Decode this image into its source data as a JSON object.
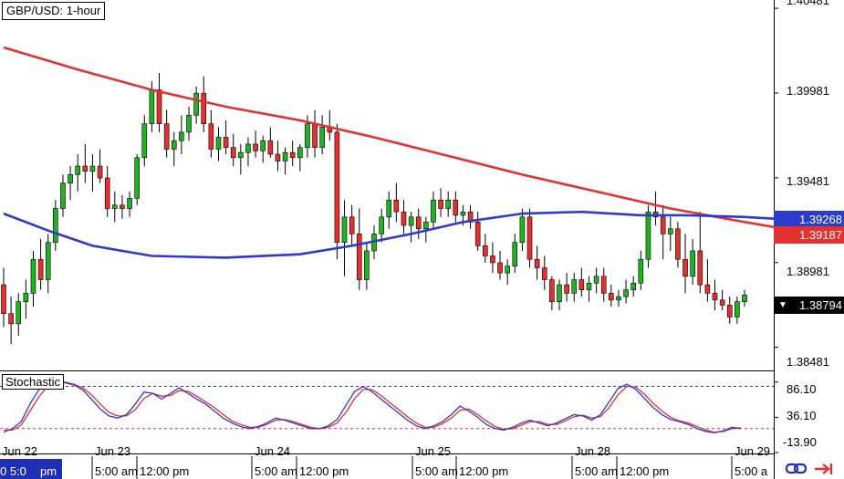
{
  "chart_data": {
    "type": "candlestick",
    "title": "GBP/USD: 1-hour",
    "price_axis": {
      "ticks": [
        "1.40481",
        "1.39981",
        "1.39481",
        "1.38981",
        "1.38481"
      ],
      "ylim": [
        1.3835,
        1.4053
      ]
    },
    "x_tick_labels": [
      "Jun 22",
      "Jun 23",
      "Jun 24",
      "Jun 25",
      "Jun 28",
      "Jun 29"
    ],
    "bottom_labels": [
      "0 5:0",
      "pm",
      "5:00 am",
      "12:00 pm",
      "5:00 am",
      "12:00 pm",
      "5:00 am",
      "12:00 pm",
      "5:00 am",
      "12:00 pm",
      "5:00 a"
    ],
    "price_badges": [
      {
        "value": "1.39268",
        "color": "#2b3bcc"
      },
      {
        "value": "1.39187",
        "color": "#e53030"
      },
      {
        "value": "1.38794",
        "color": "#000000"
      }
    ],
    "candles": [
      [
        1.3885,
        1.3895,
        1.386,
        1.3868
      ],
      [
        1.3868,
        1.3878,
        1.385,
        1.3862
      ],
      [
        1.3862,
        1.388,
        1.3855,
        1.3875
      ],
      [
        1.3875,
        1.3888,
        1.3865,
        1.388
      ],
      [
        1.388,
        1.3905,
        1.3872,
        1.39
      ],
      [
        1.39,
        1.3912,
        1.3882,
        1.3888
      ],
      [
        1.3888,
        1.3915,
        1.388,
        1.391
      ],
      [
        1.391,
        1.3935,
        1.3905,
        1.393
      ],
      [
        1.393,
        1.395,
        1.3925,
        1.3945
      ],
      [
        1.3945,
        1.3955,
        1.3935,
        1.395
      ],
      [
        1.395,
        1.3962,
        1.394,
        1.3955
      ],
      [
        1.3955,
        1.3968,
        1.3945,
        1.3952
      ],
      [
        1.3952,
        1.3962,
        1.394,
        1.3955
      ],
      [
        1.3955,
        1.3965,
        1.3945,
        1.3948
      ],
      [
        1.3948,
        1.3955,
        1.3925,
        1.393
      ],
      [
        1.393,
        1.394,
        1.3922,
        1.3932
      ],
      [
        1.3932,
        1.3938,
        1.3924,
        1.393
      ],
      [
        1.393,
        1.394,
        1.3925,
        1.3936
      ],
      [
        1.3936,
        1.3962,
        1.3932,
        1.396
      ],
      [
        1.396,
        1.3985,
        1.3955,
        1.398
      ],
      [
        1.398,
        1.4005,
        1.3975,
        1.4
      ],
      [
        1.4,
        1.401,
        1.3975,
        1.398
      ],
      [
        1.398,
        1.3988,
        1.396,
        1.3965
      ],
      [
        1.3965,
        1.3975,
        1.3955,
        1.397
      ],
      [
        1.397,
        1.3985,
        1.3962,
        1.3975
      ],
      [
        1.3975,
        1.399,
        1.397,
        1.3985
      ],
      [
        1.3985,
        1.4002,
        1.398,
        1.3998
      ],
      [
        1.3998,
        1.4008,
        1.3975,
        1.398
      ],
      [
        1.398,
        1.3988,
        1.396,
        1.3965
      ],
      [
        1.3965,
        1.3978,
        1.3958,
        1.3972
      ],
      [
        1.3972,
        1.3982,
        1.3962,
        1.3966
      ],
      [
        1.3966,
        1.3974,
        1.3955,
        1.396
      ],
      [
        1.396,
        1.3968,
        1.395,
        1.3963
      ],
      [
        1.3963,
        1.3972,
        1.3955,
        1.3968
      ],
      [
        1.3968,
        1.3976,
        1.396,
        1.3964
      ],
      [
        1.3964,
        1.3973,
        1.3957,
        1.397
      ],
      [
        1.397,
        1.3978,
        1.396,
        1.3962
      ],
      [
        1.3962,
        1.397,
        1.3952,
        1.3958
      ],
      [
        1.3958,
        1.3966,
        1.395,
        1.3963
      ],
      [
        1.3963,
        1.397,
        1.3955,
        1.396
      ],
      [
        1.396,
        1.3968,
        1.3952,
        1.3966
      ],
      [
        1.3966,
        1.3985,
        1.396,
        1.398
      ],
      [
        1.398,
        1.3988,
        1.396,
        1.3966
      ],
      [
        1.3966,
        1.3985,
        1.3962,
        1.3978
      ],
      [
        1.3978,
        1.3988,
        1.397,
        1.3975
      ],
      [
        1.3975,
        1.398,
        1.39,
        1.391
      ],
      [
        1.391,
        1.3935,
        1.389,
        1.3925
      ],
      [
        1.3925,
        1.3932,
        1.3908,
        1.3915
      ],
      [
        1.3915,
        1.393,
        1.3882,
        1.3888
      ],
      [
        1.3888,
        1.391,
        1.3882,
        1.3905
      ],
      [
        1.3905,
        1.392,
        1.39,
        1.3915
      ],
      [
        1.3915,
        1.393,
        1.391,
        1.3925
      ],
      [
        1.3925,
        1.394,
        1.3918,
        1.3935
      ],
      [
        1.3935,
        1.3945,
        1.3922,
        1.3928
      ],
      [
        1.3928,
        1.3935,
        1.3915,
        1.392
      ],
      [
        1.392,
        1.3928,
        1.391,
        1.3925
      ],
      [
        1.3925,
        1.393,
        1.3912,
        1.3918
      ],
      [
        1.3918,
        1.3925,
        1.391,
        1.3922
      ],
      [
        1.3922,
        1.394,
        1.3918,
        1.3935
      ],
      [
        1.3935,
        1.3942,
        1.3925,
        1.393
      ],
      [
        1.393,
        1.394,
        1.3925,
        1.3935
      ],
      [
        1.3935,
        1.394,
        1.3922,
        1.3926
      ],
      [
        1.3926,
        1.3932,
        1.392,
        1.3928
      ],
      [
        1.3928,
        1.3932,
        1.3918,
        1.3922
      ],
      [
        1.3922,
        1.3928,
        1.3905,
        1.3908
      ],
      [
        1.3908,
        1.3915,
        1.3898,
        1.3902
      ],
      [
        1.3902,
        1.391,
        1.3892,
        1.3898
      ],
      [
        1.3898,
        1.3905,
        1.3888,
        1.3892
      ],
      [
        1.3892,
        1.39,
        1.3885,
        1.3896
      ],
      [
        1.3896,
        1.3915,
        1.3892,
        1.391
      ],
      [
        1.391,
        1.393,
        1.3905,
        1.3925
      ],
      [
        1.3925,
        1.393,
        1.3895,
        1.39
      ],
      [
        1.39,
        1.3908,
        1.3888,
        1.3895
      ],
      [
        1.3895,
        1.3902,
        1.3882,
        1.3888
      ],
      [
        1.3888,
        1.389,
        1.387,
        1.3875
      ],
      [
        1.3875,
        1.3888,
        1.387,
        1.3885
      ],
      [
        1.3885,
        1.3892,
        1.3875,
        1.388
      ],
      [
        1.388,
        1.3892,
        1.3875,
        1.3888
      ],
      [
        1.3888,
        1.3895,
        1.3878,
        1.3882
      ],
      [
        1.3882,
        1.389,
        1.3875,
        1.3886
      ],
      [
        1.3886,
        1.3895,
        1.388,
        1.389
      ],
      [
        1.389,
        1.3895,
        1.3875,
        1.388
      ],
      [
        1.388,
        1.3885,
        1.3872,
        1.3876
      ],
      [
        1.3876,
        1.3882,
        1.3872,
        1.3878
      ],
      [
        1.3878,
        1.3888,
        1.3874,
        1.3882
      ],
      [
        1.3882,
        1.389,
        1.3878,
        1.3886
      ],
      [
        1.3886,
        1.3905,
        1.3882,
        1.39
      ],
      [
        1.39,
        1.3932,
        1.3895,
        1.3928
      ],
      [
        1.3928,
        1.394,
        1.392,
        1.3925
      ],
      [
        1.3925,
        1.3932,
        1.39,
        1.3915
      ],
      [
        1.3915,
        1.3925,
        1.3905,
        1.3918
      ],
      [
        1.3918,
        1.3922,
        1.3895,
        1.39
      ],
      [
        1.39,
        1.3915,
        1.388,
        1.389
      ],
      [
        1.389,
        1.3912,
        1.3885,
        1.3905
      ],
      [
        1.3905,
        1.3928,
        1.388,
        1.3885
      ],
      [
        1.3885,
        1.39,
        1.3875,
        1.388
      ],
      [
        1.388,
        1.3888,
        1.387,
        1.3876
      ],
      [
        1.3876,
        1.3882,
        1.387,
        1.3873
      ],
      [
        1.3873,
        1.3878,
        1.3862,
        1.3866
      ],
      [
        1.3866,
        1.3878,
        1.3862,
        1.3875
      ],
      [
        1.3875,
        1.3882,
        1.3872,
        1.3879
      ]
    ],
    "ema_fast": {
      "color": "#2b3bcc",
      "values": [
        [
          0,
          1.3927
        ],
        [
          6,
          1.3917
        ],
        [
          12,
          1.3908
        ],
        [
          20,
          1.3902
        ],
        [
          30,
          1.3901
        ],
        [
          40,
          1.3903
        ],
        [
          47,
          1.3908
        ],
        [
          55,
          1.3915
        ],
        [
          62,
          1.3922
        ],
        [
          70,
          1.3927
        ],
        [
          78,
          1.3928
        ],
        [
          86,
          1.3926
        ],
        [
          92,
          1.3926
        ],
        [
          100,
          1.3925
        ],
        [
          104,
          1.3924
        ]
      ]
    },
    "ema_slow": {
      "color": "#e53030",
      "values": [
        [
          0,
          1.4025
        ],
        [
          10,
          1.4012
        ],
        [
          20,
          1.4
        ],
        [
          30,
          1.399
        ],
        [
          40,
          1.3982
        ],
        [
          50,
          1.3972
        ],
        [
          60,
          1.3961
        ],
        [
          70,
          1.395
        ],
        [
          80,
          1.394
        ],
        [
          90,
          1.393
        ],
        [
          100,
          1.3922
        ],
        [
          104,
          1.3919
        ]
      ]
    },
    "stochastic": {
      "label": "Stochastic",
      "ticks": [
        "86.10",
        "36.10",
        "-13.90"
      ],
      "ylim": [
        -13.9,
        100
      ],
      "upper_level": 80,
      "lower_level": 20,
      "k": [
        15,
        20,
        30,
        55,
        75,
        85,
        88,
        85,
        82,
        75,
        62,
        48,
        38,
        35,
        40,
        55,
        72,
        70,
        62,
        70,
        78,
        70,
        62,
        55,
        45,
        35,
        28,
        23,
        20,
        23,
        28,
        35,
        32,
        28,
        24,
        20,
        20,
        24,
        33,
        53,
        73,
        80,
        72,
        62,
        52,
        42,
        32,
        24,
        20,
        24,
        30,
        40,
        52,
        45,
        36,
        26,
        20,
        18,
        22,
        28,
        32,
        28,
        24,
        28,
        34,
        40,
        38,
        32,
        40,
        58,
        77,
        83,
        76,
        63,
        50,
        40,
        33,
        30,
        26,
        20,
        16,
        14,
        17,
        22,
        20
      ],
      "d": [
        18,
        18,
        25,
        45,
        65,
        80,
        86,
        86,
        83,
        78,
        68,
        55,
        43,
        38,
        38,
        47,
        63,
        70,
        66,
        67,
        74,
        73,
        66,
        58,
        50,
        40,
        31,
        26,
        22,
        22,
        26,
        32,
        33,
        30,
        26,
        22,
        20,
        22,
        28,
        43,
        63,
        76,
        75,
        67,
        57,
        47,
        37,
        28,
        22,
        22,
        27,
        35,
        46,
        48,
        40,
        31,
        23,
        19,
        20,
        25,
        30,
        30,
        26,
        26,
        31,
        37,
        39,
        35,
        37,
        50,
        68,
        80,
        79,
        69,
        56,
        45,
        36,
        31,
        28,
        23,
        18,
        15,
        16,
        20,
        21
      ]
    }
  },
  "colors": {
    "bull": "#21b121",
    "bear": "#e53030",
    "ema_fast": "#2b3bcc",
    "ema_slow": "#e53030"
  }
}
